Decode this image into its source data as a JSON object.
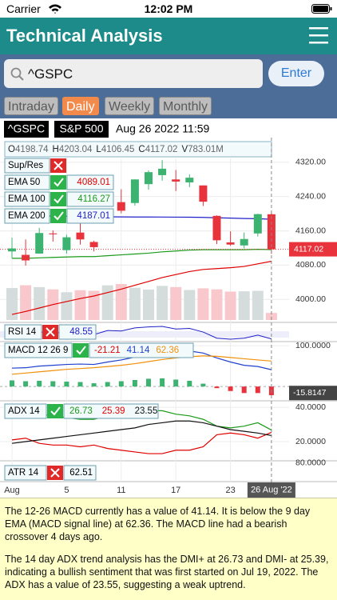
{
  "status_bar": {
    "carrier": "Carrier",
    "time": "12:02 PM"
  },
  "header": {
    "title": "Technical Analysis"
  },
  "search": {
    "query": "^GSPC",
    "button": "Enter"
  },
  "tabs": [
    "Intraday",
    "Daily",
    "Weekly",
    "Monthly"
  ],
  "active_tab": 1,
  "chart_data": {
    "type": "candlestick",
    "symbol": "^GSPC",
    "name": "S&P 500",
    "timestamp": "Aug 26 2022 11:59",
    "quote": [
      {
        "key": "O",
        "value": 4198.74
      },
      {
        "key": "H",
        "value": 4203.04
      },
      {
        "key": "L",
        "value": 4106.45
      },
      {
        "key": "C",
        "value": 4117.02
      },
      {
        "key": "V",
        "value": "783.01M"
      }
    ],
    "categories": [
      "Aug",
      null,
      null,
      null,
      "5",
      null,
      null,
      null,
      "11",
      null,
      null,
      null,
      "17",
      null,
      null,
      null,
      "23",
      null,
      null,
      null
    ],
    "cursor_label": "26 Aug '22",
    "open": [
      4112,
      4104,
      4107,
      4154,
      4115,
      4156,
      4134,
      4181,
      4227,
      4225,
      4269,
      4290,
      4280,
      4273,
      4266,
      4195,
      4133,
      4126,
      4154,
      4198.74
    ],
    "high": [
      4144,
      4140,
      4167,
      4161,
      4151,
      4187,
      4137,
      4211,
      4257,
      4280,
      4301,
      4325,
      4302,
      4292,
      4266,
      4196,
      4159,
      4156,
      4200,
      4203.04
    ],
    "low": [
      4096,
      4079,
      4107,
      4135,
      4107,
      4128,
      4112,
      4177,
      4201,
      4219,
      4256,
      4277,
      4253,
      4262,
      4218,
      4129,
      4125,
      4119,
      4147,
      4106.45
    ],
    "close": [
      4119,
      4091,
      4155,
      4152,
      4145,
      4140,
      4122,
      4210,
      4207,
      4280,
      4297,
      4305,
      4275,
      4284,
      4228,
      4138,
      4128,
      4141,
      4199,
      4117.02
    ],
    "volume": [
      3540,
      3850,
      3650,
      3400,
      3080,
      3300,
      3240,
      3840,
      3990,
      3570,
      3380,
      3780,
      3650,
      3330,
      3510,
      3400,
      3150,
      3180,
      3230,
      783.01
    ],
    "up_color": "#3cb371",
    "down_color": "#e8323c",
    "ylim": [
      3952,
      4344
    ],
    "yticks": [
      {
        "value": 4320,
        "label": "4320.00"
      },
      {
        "value": 4240,
        "label": "4240.00"
      },
      {
        "value": 4160,
        "label": "4160.00"
      },
      {
        "value": 4080,
        "label": "4080.00"
      },
      {
        "value": 4000,
        "label": "4000.00"
      }
    ],
    "last_price": 4117.02,
    "overlays": [
      {
        "name": "Sup/Res",
        "checked": false
      },
      {
        "name": "EMA 50",
        "checked": true,
        "value": 4089.01,
        "color": "#e00000",
        "values": [
          3965,
          3972,
          3980,
          3988,
          3995,
          4002,
          4008,
          4016,
          4024,
          4033,
          4042,
          4051,
          4058,
          4065,
          4070,
          4072,
          4074,
          4077,
          4083,
          4089.01
        ]
      },
      {
        "name": "EMA 100",
        "checked": true,
        "value": 4116.27,
        "color": "#1a9a1a",
        "values": [
          4096,
          4096,
          4097,
          4098,
          4099,
          4100,
          4100,
          4102,
          4104,
          4106,
          4108,
          4111,
          4113,
          4115,
          4116,
          4116,
          4116,
          4116,
          4117,
          4116.27
        ]
      },
      {
        "name": "EMA 200",
        "checked": true,
        "value": 4187.01,
        "color": "#2020c8",
        "values": [
          4196,
          4195.5,
          4195,
          4194.6,
          4194.1,
          4193.6,
          4193.1,
          4192.8,
          4192.5,
          4192.4,
          4192.3,
          4192.2,
          4192,
          4191.8,
          4191.4,
          4190.5,
          4189.7,
          4188.9,
          4188.3,
          4187.01
        ]
      }
    ],
    "rsi": {
      "name": "RSI 14",
      "checked": false,
      "value": 48.55,
      "color": "#2020c8",
      "values": [
        55,
        57,
        62,
        61,
        60,
        58,
        57,
        65,
        64,
        70,
        72,
        73,
        68,
        69,
        62,
        50,
        48,
        50,
        56,
        48.55
      ]
    },
    "macd": {
      "name": "MACD 12 26 9",
      "checked": true,
      "ylim": [
        -33,
        108
      ],
      "yticks": [
        {
          "value": 100,
          "label": "100.0000"
        }
      ],
      "marker": -15.8147,
      "series": [
        {
          "name": "Histogram",
          "value": -21.21,
          "color": "#e00000",
          "values": [
            15,
            13,
            14,
            13,
            12,
            11,
            8,
            11,
            13,
            16,
            19,
            20,
            17,
            14,
            7,
            -4,
            -11,
            -16,
            -16,
            -21.21
          ]
        },
        {
          "name": "MACD",
          "value": 41.14,
          "color": "#2040d0",
          "values": [
            45,
            46,
            50,
            52,
            54,
            55,
            54,
            60,
            65,
            72,
            80,
            86,
            87,
            87,
            82,
            70,
            60,
            52,
            49,
            41.14
          ]
        },
        {
          "name": "Signal",
          "value": 62.36,
          "color": "#f0900a",
          "values": [
            30,
            33,
            36,
            39,
            42,
            44,
            46,
            49,
            52,
            56,
            61,
            66,
            70,
            73,
            75,
            74,
            71,
            68,
            65,
            62.36
          ]
        }
      ]
    },
    "adx": {
      "name": "ADX 14",
      "checked": true,
      "ylim": [
        9.3,
        43.3
      ],
      "yticks": [
        {
          "value": 40,
          "label": "40.0000"
        },
        {
          "value": 20,
          "label": "20.0000"
        }
      ],
      "series": [
        {
          "name": "DMI+",
          "value": 26.73,
          "color": "#1a9a1a",
          "values": [
            36,
            35,
            36,
            35,
            34,
            33,
            33,
            35,
            36,
            37,
            38,
            38,
            36,
            35,
            33,
            29,
            28,
            29,
            31,
            26.73
          ]
        },
        {
          "name": "DMI-",
          "value": 25.39,
          "color": "#e00000",
          "values": [
            21,
            22,
            19,
            18,
            18,
            17,
            18,
            16,
            15,
            14,
            13,
            13,
            15,
            15,
            17,
            24,
            25,
            24,
            22,
            25.39
          ]
        },
        {
          "name": "ADX",
          "value": 23.55,
          "color": "#111111",
          "values": [
            19,
            20,
            21,
            22,
            23,
            24,
            25,
            26,
            27,
            28,
            30,
            31,
            32,
            32,
            31,
            29,
            27,
            26,
            25,
            23.55
          ]
        }
      ]
    },
    "atr": {
      "name": "ATR 14",
      "checked": false,
      "value": 62.51,
      "ylim": [
        55,
        82
      ],
      "yticks": [
        {
          "value": 80,
          "label": "80.0000"
        }
      ]
    }
  },
  "analysis": {
    "paragraphs": [
      "The 12-26 MACD currently has a value of 41.14. It is below the 9 day EMA (MACD signal line) at 62.36. The MACD line had a bearish crossover 4 days ago.",
      "The 14 day ADX trend analysis has the DMI+ at 26.73 and DMI- at 25.39, indicating a bullish sentiment that was first started on Jul 19, 2022. The ADX has a value of 23.55, suggesting a weak uptrend."
    ]
  }
}
